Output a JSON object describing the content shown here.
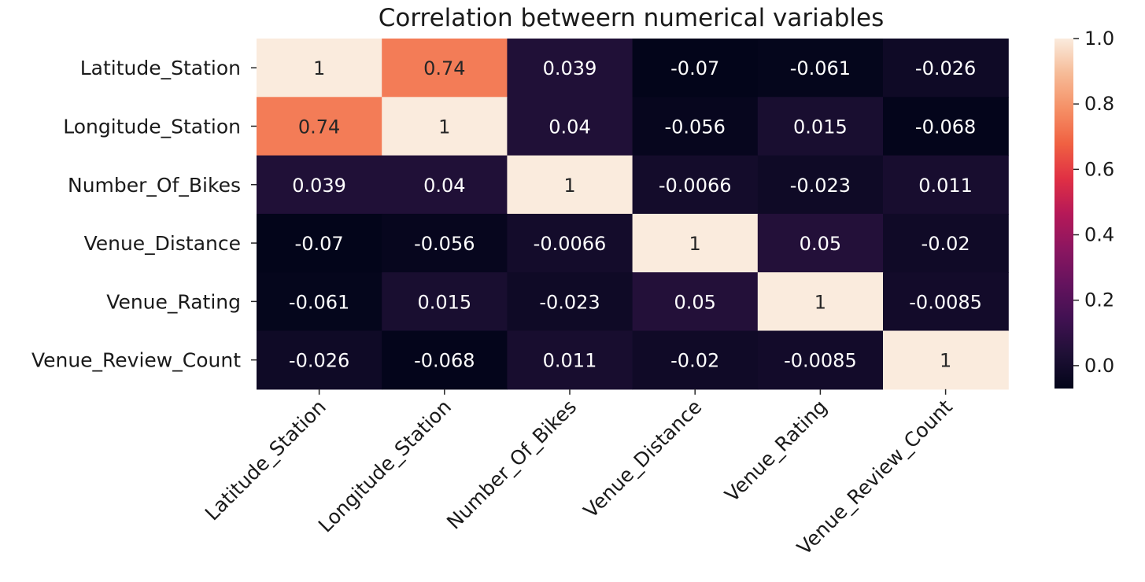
{
  "chart_data": {
    "type": "heatmap",
    "title": "Correlation betweern numerical variables",
    "row_labels": [
      "Latitude_Station",
      "Longitude_Station",
      "Number_Of_Bikes",
      "Venue_Distance",
      "Venue_Rating",
      "Venue_Review_Count"
    ],
    "col_labels": [
      "Latitude_Station",
      "Longitude_Station",
      "Number_Of_Bikes",
      "Venue_Distance",
      "Venue_Rating",
      "Venue_Review_Count"
    ],
    "values": [
      [
        1,
        0.74,
        0.039,
        -0.07,
        -0.061,
        -0.026
      ],
      [
        0.74,
        1,
        0.04,
        -0.056,
        0.015,
        -0.068
      ],
      [
        0.039,
        0.04,
        1,
        -0.0066,
        -0.023,
        0.011
      ],
      [
        -0.07,
        -0.056,
        -0.0066,
        1,
        0.05,
        -0.02
      ],
      [
        -0.061,
        0.015,
        -0.023,
        0.05,
        1,
        -0.0085
      ],
      [
        -0.026,
        -0.068,
        0.011,
        -0.02,
        -0.0085,
        1
      ]
    ],
    "annotations": [
      [
        "1",
        "0.74",
        "0.039",
        "-0.07",
        "-0.061",
        "-0.026"
      ],
      [
        "0.74",
        "1",
        "0.04",
        "-0.056",
        "0.015",
        "-0.068"
      ],
      [
        "0.039",
        "0.04",
        "1",
        "-0.0066",
        "-0.023",
        "0.011"
      ],
      [
        "-0.07",
        "-0.056",
        "-0.0066",
        "1",
        "0.05",
        "-0.02"
      ],
      [
        "-0.061",
        "0.015",
        "-0.023",
        "0.05",
        "1",
        "-0.0085"
      ],
      [
        "-0.026",
        "-0.068",
        "0.011",
        "-0.02",
        "-0.0085",
        "1"
      ]
    ],
    "colormap": "rocket",
    "vmin": -0.07,
    "vmax": 1.0,
    "colorbar_ticks": [
      0.0,
      0.2,
      0.4,
      0.6,
      0.8,
      1.0
    ],
    "colorbar_tick_labels": [
      "0.0",
      "0.2",
      "0.4",
      "0.6",
      "0.8",
      "1.0"
    ],
    "x_tick_rotation_deg": 45,
    "grid": false,
    "legend": "colorbar-right"
  }
}
